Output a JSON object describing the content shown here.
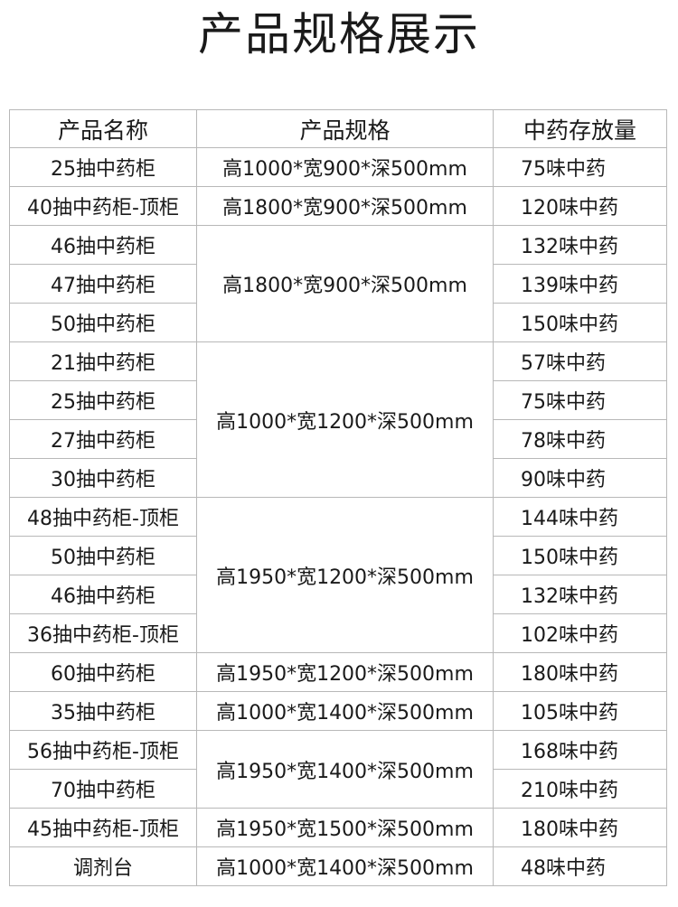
{
  "title": "产品规格展示",
  "table": {
    "headers": [
      "产品名称",
      "产品规格",
      "中药存放量"
    ],
    "groups": [
      {
        "spec": "高1000*宽900*深500mm",
        "items": [
          {
            "name": "25抽中药柜",
            "capacity": "75味中药"
          }
        ]
      },
      {
        "spec": "高1800*宽900*深500mm",
        "items": [
          {
            "name": "40抽中药柜-顶柜",
            "capacity": "120味中药"
          }
        ]
      },
      {
        "spec": "高1800*宽900*深500mm",
        "items": [
          {
            "name": "46抽中药柜",
            "capacity": "132味中药"
          },
          {
            "name": "47抽中药柜",
            "capacity": "139味中药"
          },
          {
            "name": "50抽中药柜",
            "capacity": "150味中药"
          }
        ]
      },
      {
        "spec": "高1000*宽1200*深500mm",
        "items": [
          {
            "name": "21抽中药柜",
            "capacity": "57味中药"
          },
          {
            "name": "25抽中药柜",
            "capacity": "75味中药"
          },
          {
            "name": "27抽中药柜",
            "capacity": "78味中药"
          },
          {
            "name": "30抽中药柜",
            "capacity": "90味中药"
          }
        ]
      },
      {
        "spec": "高1950*宽1200*深500mm",
        "items": [
          {
            "name": "48抽中药柜-顶柜",
            "capacity": "144味中药"
          },
          {
            "name": "50抽中药柜",
            "capacity": "150味中药"
          },
          {
            "name": "46抽中药柜",
            "capacity": "132味中药"
          },
          {
            "name": "36抽中药柜-顶柜",
            "capacity": "102味中药"
          }
        ]
      },
      {
        "spec": "高1950*宽1200*深500mm",
        "items": [
          {
            "name": "60抽中药柜",
            "capacity": "180味中药"
          }
        ]
      },
      {
        "spec": "高1000*宽1400*深500mm",
        "items": [
          {
            "name": "35抽中药柜",
            "capacity": "105味中药"
          }
        ]
      },
      {
        "spec": "高1950*宽1400*深500mm",
        "items": [
          {
            "name": "56抽中药柜-顶柜",
            "capacity": "168味中药"
          },
          {
            "name": "70抽中药柜",
            "capacity": "210味中药"
          }
        ]
      },
      {
        "spec": "高1950*宽1500*深500mm",
        "items": [
          {
            "name": "45抽中药柜-顶柜",
            "capacity": "180味中药"
          }
        ]
      },
      {
        "spec": "高1000*宽1400*深500mm",
        "items": [
          {
            "name": "调剂台",
            "capacity": "48味中药"
          }
        ]
      }
    ]
  }
}
